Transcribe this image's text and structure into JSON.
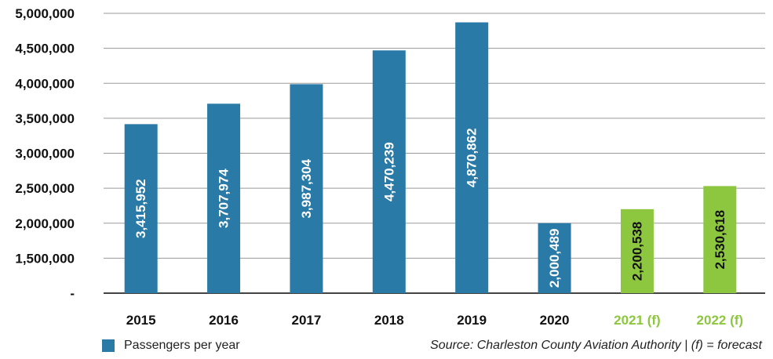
{
  "chart_data": {
    "type": "bar",
    "categories": [
      "2015",
      "2016",
      "2017",
      "2018",
      "2019",
      "2020",
      "2021 (f)",
      "2022 (f)"
    ],
    "series": [
      {
        "name": "Passengers per year",
        "values": [
          3415952,
          3707974,
          3987304,
          4470239,
          4870862,
          2000489,
          2200538,
          2530618
        ],
        "value_labels": [
          "3,415,952",
          "3,707,974",
          "3,987,304",
          "4,470,239",
          "4,870,862",
          "2,000,489",
          "2,200,538",
          "2,530,618"
        ]
      }
    ],
    "forecast": [
      false,
      false,
      false,
      false,
      false,
      false,
      true,
      true
    ],
    "ylim": [
      1000000,
      5000000
    ],
    "yticks": [
      1000000,
      1500000,
      2000000,
      2500000,
      3000000,
      3500000,
      4000000,
      4500000,
      5000000
    ],
    "ytick_labels": [
      "-",
      "1,500,000",
      "2,000,000",
      "2,500,000",
      "3,000,000",
      "3,500,000",
      "4,000,000",
      "4,500,000",
      "5,000,000"
    ],
    "grid": true,
    "legend_position": "bottom-left",
    "colors": {
      "actual": "#2a7aa8",
      "forecast": "#8dc63f",
      "grid": "#9a9a9a",
      "axis": "#444444"
    }
  },
  "legend": {
    "label": "Passengers per year"
  },
  "source_note": "Source: Charleston County Aviation Authority | (f) = forecast"
}
